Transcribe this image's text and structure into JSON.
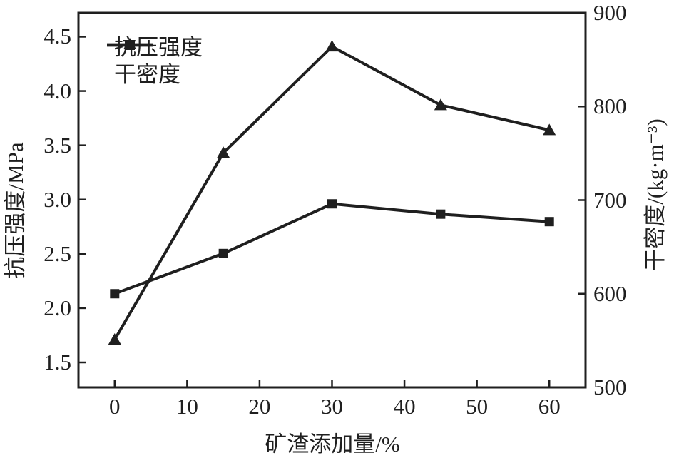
{
  "figure": {
    "background": "#ffffff",
    "ink_color": "#1f1f1f"
  },
  "chart_data": {
    "type": "line",
    "x": [
      0,
      15,
      30,
      45,
      60
    ],
    "x_axis": {
      "label": "矿渣添加量/%",
      "lim": [
        -5,
        65
      ],
      "ticks": [
        "0",
        "10",
        "20",
        "30",
        "40",
        "50",
        "60"
      ],
      "grid": false
    },
    "left_axis": {
      "label": "抗压强度/MPa",
      "lim": [
        1.27,
        4.72
      ],
      "ticks": [
        "1.5",
        "2.0",
        "2.5",
        "3.0",
        "3.5",
        "4.0",
        "4.5"
      ]
    },
    "right_axis": {
      "label": "干密度/(kg·m⁻³)",
      "lim": [
        500,
        900
      ],
      "ticks": [
        "500",
        "600",
        "700",
        "800",
        "900"
      ]
    },
    "series": [
      {
        "name": "抗压强度",
        "axis": "left",
        "marker": "triangle",
        "values": [
          1.71,
          3.43,
          4.41,
          3.87,
          3.64
        ]
      },
      {
        "name": "干密度",
        "axis": "right",
        "marker": "square",
        "values": [
          600,
          643,
          696,
          685,
          677
        ]
      }
    ],
    "legend": {
      "position": "top-left"
    }
  }
}
